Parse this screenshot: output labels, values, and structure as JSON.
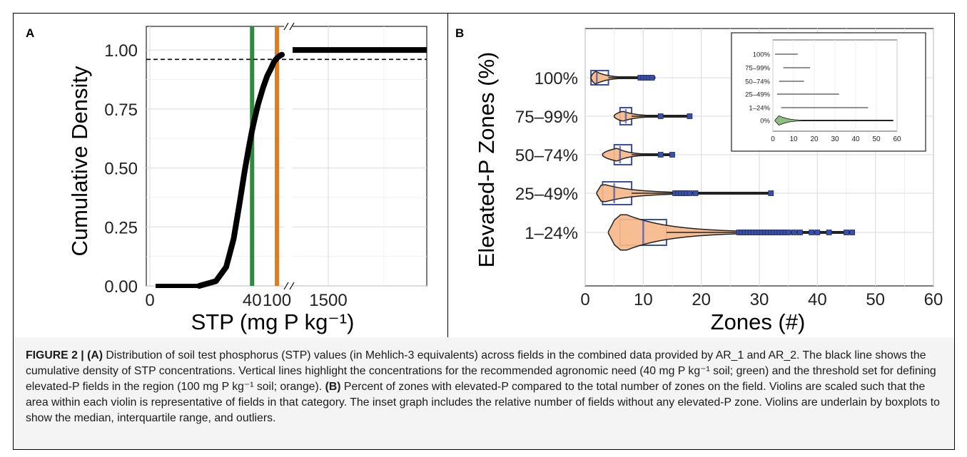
{
  "panels": {
    "a_label": "A",
    "b_label": "B"
  },
  "caption": {
    "figure_label": "FIGURE 2 |",
    "a_ref": "(A)",
    "a_text": " Distribution of soil test phosphorus (STP) values (in Mehlich-3 equivalents) across fields in the combined data provided by AR_1 and AR_2. The black line shows the cumulative density of STP concentrations. Vertical lines highlight the concentrations for the recommended agronomic need (40 mg P kg⁻¹ soil; green) and the threshold set for defining elevated-P fields in the region (100 mg P kg⁻¹ soil; orange). ",
    "b_ref": "(B)",
    "b_text": " Percent of zones with elevated-P compared to the total number of zones on the field. Violins are scaled such that the area within each violin is representative of fields in that category. The inset graph includes the relative number of fields without any elevated-P zone. Violins are underlain by boxplots to show the median, interquartile range, and outliers."
  },
  "colors": {
    "green": "#2e8b3d",
    "orange": "#e07b20",
    "violin": "#f6b98a",
    "box": "#3a4fa8",
    "inset_violin": "#8fbf80"
  },
  "chart_data": [
    {
      "type": "line",
      "title": "",
      "xlabel": "STP (mg P kg⁻¹)",
      "ylabel": "Cumulative Density",
      "x_ticks": [
        "0",
        "40",
        "100",
        "1500"
      ],
      "y_ticks": [
        "0.00",
        "0.25",
        "0.50",
        "0.75",
        "1.00"
      ],
      "ylim": [
        0,
        1.1
      ],
      "x_axis_break": true,
      "reference_lines": [
        {
          "orientation": "vertical",
          "x": 40,
          "color": "green"
        },
        {
          "orientation": "vertical",
          "x": 100,
          "color": "orange"
        },
        {
          "orientation": "horizontal",
          "y": 0.96,
          "style": "dashed"
        }
      ],
      "series": [
        {
          "x": [
            5,
            10,
            15,
            20,
            25,
            30,
            35,
            40,
            45,
            50,
            60,
            70,
            80,
            90,
            100,
            110,
            120,
            1000,
            2000
          ],
          "y": [
            0.0,
            0.02,
            0.08,
            0.2,
            0.35,
            0.48,
            0.58,
            0.66,
            0.72,
            0.77,
            0.84,
            0.89,
            0.92,
            0.95,
            0.965,
            0.975,
            0.98,
            1.0,
            1.0
          ]
        }
      ]
    },
    {
      "type": "violin",
      "xlabel": "Zones (#)",
      "ylabel": "Elevated-P Zones (%)",
      "categories": [
        "100%",
        "75–99%",
        "50–74%",
        "25–49%",
        "1–24%"
      ],
      "x_ticks": [
        "0",
        "10",
        "20",
        "30",
        "40",
        "50",
        "60"
      ],
      "xlim": [
        0,
        60
      ],
      "boxes": [
        {
          "category": "100%",
          "q1": 1,
          "median": 2,
          "q3": 4
        },
        {
          "category": "75–99%",
          "q1": 6,
          "median": 7,
          "q3": 8
        },
        {
          "category": "50–74%",
          "q1": 5,
          "median": 6,
          "q3": 8
        },
        {
          "category": "25–49%",
          "q1": 3,
          "median": 5,
          "q3": 8
        },
        {
          "category": "1–24%",
          "q1": 6,
          "median": 10,
          "q3": 14
        }
      ],
      "outliers": [
        {
          "category": "100%",
          "values": [
            9.5,
            10,
            10.5,
            11,
            11.5
          ]
        },
        {
          "category": "75–99%",
          "values": [
            13,
            18
          ]
        },
        {
          "category": "50–74%",
          "values": [
            13,
            15
          ]
        },
        {
          "category": "25–49%",
          "values": [
            15.5,
            16,
            16.5,
            17,
            17.5,
            18,
            19,
            32
          ]
        },
        {
          "category": "1–24%",
          "values": [
            26.5,
            27,
            27.5,
            28,
            28.5,
            29,
            29.5,
            30,
            30.5,
            31,
            31.5,
            32,
            32.5,
            33,
            33.5,
            34,
            34.5,
            35,
            36,
            37,
            39,
            40,
            42,
            45,
            46
          ]
        }
      ],
      "violin_ranges": [
        {
          "category": "100%",
          "min": 1,
          "max": 12
        },
        {
          "category": "75–99%",
          "min": 5,
          "max": 18
        },
        {
          "category": "50–74%",
          "min": 3,
          "max": 15
        },
        {
          "category": "25–49%",
          "min": 2,
          "max": 32
        },
        {
          "category": "1–24%",
          "min": 4,
          "max": 46
        }
      ]
    },
    {
      "type": "violin",
      "title": "",
      "categories": [
        "100%",
        "75–99%",
        "50–74%",
        "25–49%",
        "1–24%",
        "0%"
      ],
      "x_ticks": [
        "0",
        "10",
        "20",
        "30",
        "40",
        "50",
        "60"
      ],
      "xlim": [
        0,
        60
      ],
      "ranges": [
        {
          "category": "100%",
          "min": 1,
          "max": 12
        },
        {
          "category": "75–99%",
          "min": 5,
          "max": 18
        },
        {
          "category": "50–74%",
          "min": 3,
          "max": 15
        },
        {
          "category": "25–49%",
          "min": 2,
          "max": 32
        },
        {
          "category": "1–24%",
          "min": 4,
          "max": 46
        },
        {
          "category": "0%",
          "min": 1,
          "max": 58
        }
      ]
    }
  ]
}
